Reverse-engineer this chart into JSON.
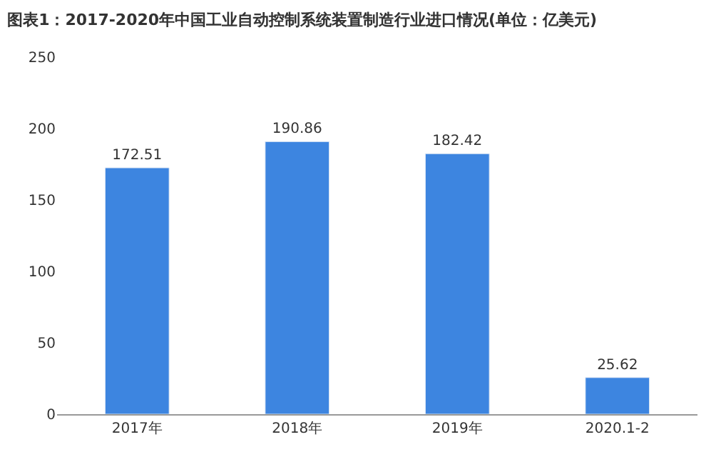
{
  "chart_data": {
    "type": "bar",
    "title": "图表1：2017-2020年中国工业自动控制系统装置制造行业进口情况(单位：亿美元)",
    "categories": [
      "2017年",
      "2018年",
      "2019年",
      "2020.1-2"
    ],
    "values": [
      172.51,
      190.86,
      182.42,
      25.62
    ],
    "value_labels": [
      "172.51",
      "190.86",
      "182.42",
      "25.62"
    ],
    "color": "#3d85e0",
    "ylim": [
      0,
      250
    ],
    "yticks": [
      0,
      50,
      100,
      150,
      200,
      250
    ]
  }
}
